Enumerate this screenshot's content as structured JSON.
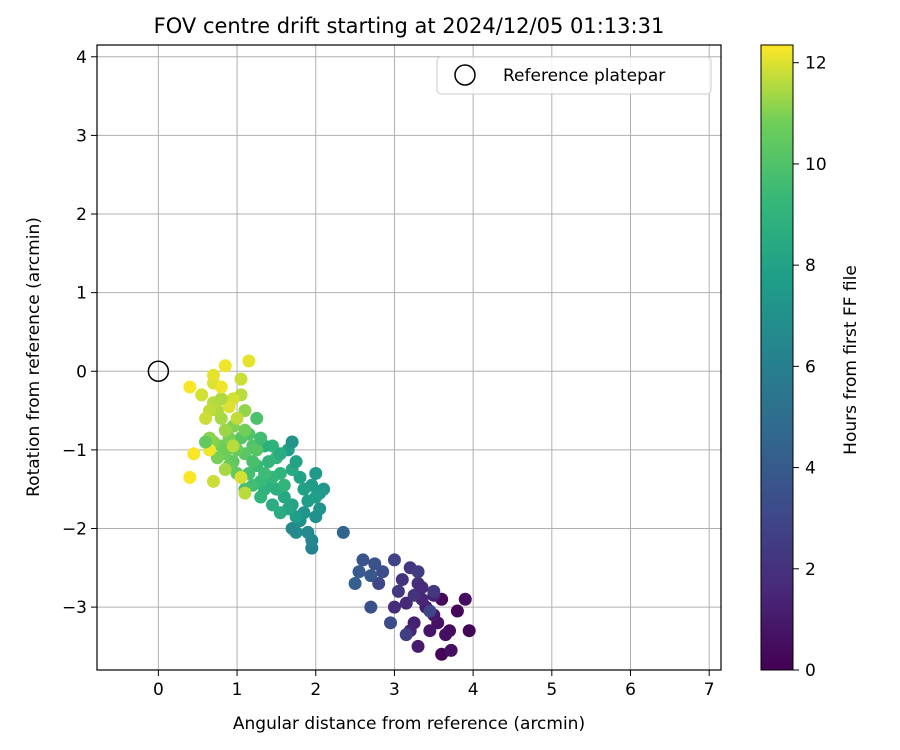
{
  "chart_data": {
    "type": "scatter",
    "title": "FOV centre drift starting at 2024/12/05 01:13:31",
    "xlabel": "Angular distance from reference (arcmin)",
    "ylabel": "Rotation from reference (arcmin)",
    "xlim": [
      -0.78,
      7.15
    ],
    "ylim": [
      -3.8,
      4.15
    ],
    "xticks": [
      0,
      1,
      2,
      3,
      4,
      5,
      6,
      7
    ],
    "yticks": [
      -3,
      -2,
      -1,
      0,
      1,
      2,
      3,
      4
    ],
    "grid": true,
    "legend": {
      "placement": "top-right",
      "entries": [
        "Reference platepar"
      ]
    },
    "reference_point": {
      "x": 0,
      "y": 0,
      "label": "Reference platepar"
    },
    "colorbar": {
      "label": "Hours from first FF file",
      "range": [
        0,
        12.35
      ],
      "ticks": [
        0,
        2,
        4,
        6,
        8,
        10,
        12
      ],
      "colormap": "viridis"
    },
    "series": [
      {
        "points": [
          [
            3.6,
            -2.9,
            0.3
          ],
          [
            3.8,
            -3.05,
            0.2
          ],
          [
            3.9,
            -2.9,
            0.5
          ],
          [
            3.95,
            -3.3,
            0.1
          ],
          [
            3.7,
            -3.3,
            0.4
          ],
          [
            3.6,
            -3.6,
            0.2
          ],
          [
            3.72,
            -3.55,
            0.6
          ],
          [
            3.45,
            -3.3,
            0.8
          ],
          [
            3.3,
            -3.5,
            1.0
          ],
          [
            3.55,
            -3.2,
            0.7
          ],
          [
            3.4,
            -3.0,
            1.1
          ],
          [
            3.5,
            -3.1,
            0.9
          ],
          [
            3.25,
            -3.2,
            1.2
          ],
          [
            3.5,
            -2.85,
            1.3
          ],
          [
            3.35,
            -2.9,
            1.5
          ],
          [
            3.2,
            -3.3,
            1.4
          ],
          [
            3.15,
            -2.95,
            1.6
          ],
          [
            3.0,
            -3.0,
            1.8
          ],
          [
            3.1,
            -2.65,
            2.0
          ],
          [
            3.2,
            -2.5,
            2.2
          ],
          [
            3.3,
            -2.7,
            1.9
          ],
          [
            3.25,
            -2.85,
            2.1
          ],
          [
            3.05,
            -2.8,
            2.4
          ],
          [
            3.15,
            -3.35,
            2.6
          ],
          [
            3.0,
            -2.4,
            2.8
          ],
          [
            2.8,
            -2.7,
            3.0
          ],
          [
            2.95,
            -3.2,
            3.2
          ],
          [
            2.85,
            -2.55,
            3.3
          ],
          [
            2.75,
            -2.45,
            3.5
          ],
          [
            2.7,
            -3.0,
            3.4
          ],
          [
            2.6,
            -2.4,
            3.6
          ],
          [
            2.7,
            -2.6,
            3.8
          ],
          [
            2.55,
            -2.55,
            4.0
          ],
          [
            2.5,
            -2.7,
            4.2
          ],
          [
            2.35,
            -2.05,
            4.5
          ],
          [
            3.5,
            -2.8,
            2.3
          ],
          [
            3.45,
            -3.05,
            2.9
          ],
          [
            3.35,
            -2.75,
            1.7
          ],
          [
            3.65,
            -3.35,
            0.5
          ],
          [
            3.3,
            -2.55,
            2.5
          ],
          [
            1.95,
            -2.25,
            6.2
          ],
          [
            1.95,
            -2.15,
            6.4
          ],
          [
            1.9,
            -2.05,
            6.6
          ],
          [
            1.75,
            -2.05,
            6.8
          ],
          [
            1.7,
            -2.0,
            6.5
          ],
          [
            1.8,
            -1.9,
            6.9
          ],
          [
            2.0,
            -1.85,
            7.0
          ],
          [
            2.05,
            -1.75,
            7.1
          ],
          [
            1.85,
            -1.8,
            7.2
          ],
          [
            2.1,
            -1.5,
            7.3
          ],
          [
            2.0,
            -1.3,
            7.4
          ],
          [
            2.05,
            -1.55,
            7.5
          ],
          [
            1.95,
            -1.45,
            7.6
          ],
          [
            1.9,
            -1.65,
            7.7
          ],
          [
            2.0,
            -1.6,
            7.8
          ],
          [
            1.85,
            -1.5,
            7.9
          ],
          [
            1.8,
            -1.35,
            8.0
          ],
          [
            1.7,
            -1.7,
            8.1
          ],
          [
            1.75,
            -1.85,
            7.8
          ],
          [
            1.65,
            -1.75,
            8.2
          ],
          [
            1.6,
            -1.6,
            8.3
          ],
          [
            1.55,
            -1.8,
            8.5
          ],
          [
            1.45,
            -1.7,
            8.6
          ],
          [
            1.5,
            -1.5,
            8.7
          ],
          [
            1.4,
            -1.4,
            8.8
          ],
          [
            1.35,
            -1.5,
            8.9
          ],
          [
            1.7,
            -1.25,
            8.4
          ],
          [
            1.75,
            -1.15,
            8.0
          ],
          [
            1.65,
            -1.0,
            7.8
          ],
          [
            1.7,
            -0.9,
            7.2
          ],
          [
            1.55,
            -1.3,
            9.0
          ],
          [
            1.6,
            -1.45,
            9.1
          ],
          [
            1.45,
            -1.35,
            9.2
          ],
          [
            1.3,
            -1.4,
            9.3
          ],
          [
            1.25,
            -1.2,
            9.4
          ],
          [
            1.35,
            -1.3,
            9.5
          ],
          [
            1.2,
            -1.45,
            9.6
          ],
          [
            1.15,
            -1.3,
            9.7
          ],
          [
            1.1,
            -1.5,
            9.8
          ],
          [
            1.3,
            -1.6,
            9.0
          ],
          [
            1.4,
            -1.15,
            9.1
          ],
          [
            1.5,
            -1.1,
            9.2
          ],
          [
            1.45,
            -0.95,
            9.0
          ],
          [
            1.35,
            -0.95,
            8.8
          ],
          [
            1.55,
            -1.05,
            8.5
          ],
          [
            1.25,
            -0.6,
            9.9
          ],
          [
            1.15,
            -0.8,
            10.0
          ],
          [
            1.2,
            -0.95,
            10.1
          ],
          [
            1.05,
            -0.85,
            10.2
          ],
          [
            1.1,
            -1.05,
            10.3
          ],
          [
            0.95,
            -1.15,
            10.4
          ],
          [
            1.0,
            -1.3,
            10.5
          ],
          [
            0.9,
            -1.2,
            10.6
          ],
          [
            0.85,
            -1.05,
            10.7
          ],
          [
            0.8,
            -0.95,
            10.8
          ],
          [
            0.75,
            -1.1,
            10.9
          ],
          [
            0.7,
            -0.9,
            11.0
          ],
          [
            0.65,
            -0.85,
            11.1
          ],
          [
            0.6,
            -0.9,
            11.2
          ],
          [
            1.0,
            -1.0,
            10.6
          ],
          [
            0.9,
            -0.85,
            10.9
          ],
          [
            0.95,
            -0.7,
            11.0
          ],
          [
            0.85,
            -0.75,
            11.3
          ],
          [
            0.8,
            -0.6,
            11.4
          ],
          [
            0.75,
            -0.5,
            11.5
          ],
          [
            0.7,
            -0.4,
            11.6
          ],
          [
            0.65,
            -0.5,
            11.7
          ],
          [
            0.6,
            -0.6,
            11.8
          ],
          [
            0.55,
            -0.3,
            11.9
          ],
          [
            0.7,
            -0.15,
            12.0
          ],
          [
            0.7,
            -0.05,
            12.1
          ],
          [
            0.85,
            0.07,
            12.2
          ],
          [
            1.15,
            0.13,
            12.1
          ],
          [
            1.05,
            -0.1,
            11.8
          ],
          [
            1.05,
            -0.3,
            11.6
          ],
          [
            0.95,
            -0.35,
            11.9
          ],
          [
            1.1,
            -0.5,
            11.2
          ],
          [
            0.9,
            -0.45,
            12.0
          ],
          [
            1.0,
            -0.6,
            11.7
          ],
          [
            0.8,
            -0.35,
            11.5
          ],
          [
            0.8,
            -0.2,
            12.2
          ],
          [
            0.4,
            -0.2,
            12.3
          ],
          [
            0.45,
            -1.05,
            12.3
          ],
          [
            0.4,
            -1.35,
            12.3
          ],
          [
            0.65,
            -1.0,
            12.2
          ],
          [
            0.7,
            -1.4,
            11.8
          ],
          [
            0.6,
            -0.9,
            10.5
          ],
          [
            1.1,
            -1.55,
            11.6
          ],
          [
            1.05,
            -1.35,
            11.9
          ],
          [
            0.85,
            -1.25,
            11.4
          ],
          [
            1.25,
            -1.0,
            10.2
          ],
          [
            1.2,
            -1.15,
            9.8
          ],
          [
            1.3,
            -0.85,
            9.6
          ],
          [
            1.1,
            -0.75,
            10.8
          ],
          [
            0.95,
            -0.95,
            11.6
          ]
        ]
      }
    ]
  }
}
